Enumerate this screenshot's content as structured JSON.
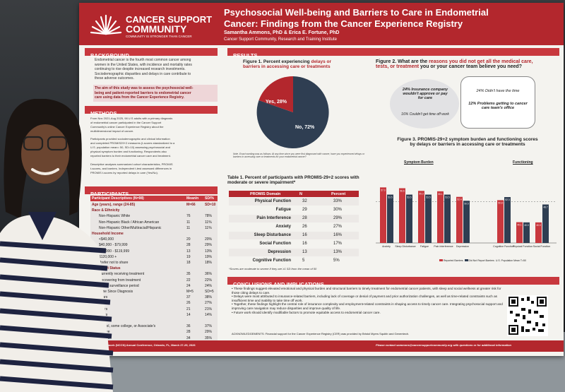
{
  "poster": {
    "org_name_1": "CANCER SUPPORT",
    "org_name_2": "COMMUNITY",
    "org_tagline": "COMMUNITY IS STRONGER THAN CANCER",
    "title_1": "Psychosocial Well-being and Barriers to Care in Endometrial",
    "title_2": "Cancer: Findings from the Cancer Experience Registry",
    "authors": "Samantha Ammons, PhD & Erica E. Fortune, PhD",
    "affiliation": "Cancer Support Community, Research and Training Institute"
  },
  "background": {
    "heading": "BACKGROUND",
    "text": [
      "Endometrial cancer is the fourth most common cancer among",
      "women in the United States, with incidence and mortality rates",
      "continuing to rise despite increased research investments.",
      "Sociodemographic disparities and delays in care contribute to",
      "these adverse outcomes."
    ],
    "aim": [
      "The aim of this study was to assess the psychosocial well-",
      "being and patient-reported barriers to endometrial cancer",
      "care using data from the Cancer Experience Registry."
    ]
  },
  "methods": {
    "heading": "METHODS",
    "bullets": [
      [
        "From Nov 2021-Aug 2025, 98 U.S adults with a primary diagnosis",
        "of endometrial cancer participated in the Cancer Support",
        "Community's online Cancer Experience Registry about the",
        "multidimensional impact of cancer."
      ],
      [
        "Participants provided sociodemographic and clinical information",
        "and completed PROMIS29+2 measures (t-scores standardized to a",
        "U.S. population mean= 50, SD=10) assessing psychosocial and",
        "physical symptom burden and functioning. Respondents also",
        "reported barriers to their endometrial cancer care and treatment."
      ],
      [
        "Descriptive analyses summarized cohort characteristics, PROMIS",
        "t-scores, and barriers. Independent t-test assessed differences in",
        "PROMIS t-scores by reported delays in care (Yes/No)."
      ]
    ]
  },
  "participants": {
    "heading": "PARTICIPANTS",
    "header": [
      "Participant Descriptives (N=98)",
      "Mean/n",
      "SD/%"
    ],
    "rows": [
      [
        "Age (years), range (24-85)",
        "M=66",
        "SD=10"
      ],
      [
        "Race & Ethnicity",
        "",
        ""
      ],
      [
        "Non-Hispanic White",
        "76",
        "78%"
      ],
      [
        "Non-Hispanic Black / African American",
        "11",
        "11%"
      ],
      [
        "Non-Hispanic Other/Multiracial/Hispanic",
        "11",
        "11%"
      ],
      [
        "Household Income",
        "",
        ""
      ],
      [
        "<$40,000",
        "20",
        "20%"
      ],
      [
        "$40,000 - $79,999",
        "28",
        "29%"
      ],
      [
        "$80,000 - $119,999",
        "13",
        "13%"
      ],
      [
        "$120,000 +",
        "19",
        "19%"
      ],
      [
        "Prefer not to share",
        "18",
        "18%"
      ],
      [
        "Treatment Status",
        "",
        ""
      ],
      [
        "Currently receiving treatment",
        "35",
        "36%"
      ],
      [
        "Recovering from treatment",
        "22",
        "22%"
      ],
      [
        "Active surveillance period",
        "24",
        "24%"
      ],
      [
        "Time Since Diagnosis",
        "M=5",
        "SD=5"
      ],
      [
        "years",
        "37",
        "38%"
      ],
      [
        "years",
        "26",
        "27%"
      ],
      [
        "years",
        "21",
        "21%"
      ],
      [
        "years",
        "14",
        "14%"
      ],
      [
        "",
        "",
        ""
      ],
      [
        "school, some college, or Associate's",
        "36",
        "37%"
      ],
      [
        "degree",
        "28",
        "29%"
      ],
      [
        "degree",
        "34",
        "35%"
      ]
    ]
  },
  "results": {
    "heading": "RESULTS",
    "fig1_title_a": "Figure 1.  Percent experiencing",
    "fig1_title_b": "delays or",
    "fig1_title_c": "barriers in accessing care or treatments",
    "pie_yes": "Yes, 28%",
    "pie_no": "No, 72%",
    "fig1_note": "Note. Exact wording was as follows: At any time since you were first diagnosed with cancer, have you experienced delays or barriers in accessing care or treatments for your endometrial cancer?",
    "fig2_title_1": "Figure 2. What are the",
    "fig2_title_2": "reasons you did not get all the medical care,",
    "fig2_title_3": "tests, or treatment",
    "fig2_title_4": "you or your cancer team believe you need?",
    "bubble1_a": "24% Insurance company wouldn't approve or pay for care",
    "bubble1_b": "16% Couldn't get time off work",
    "bubble2_a": "24% Didn't have the time",
    "bubble2_b": "12% Problems getting to cancer care team's office",
    "table1_title": "Table 1. Percent of participants with PROMIS-29+2 scores with moderate or severe impairment*",
    "table1_header": [
      "PROMIS Domain",
      "N",
      "Percent"
    ],
    "table1_rows": [
      [
        "Physical Function",
        "32",
        "33%"
      ],
      [
        "Fatigue",
        "29",
        "30%"
      ],
      [
        "Pain Interference",
        "28",
        "29%"
      ],
      [
        "Anxiety",
        "26",
        "27%"
      ],
      [
        "Sleep Disturbance",
        "16",
        "16%"
      ],
      [
        "Social Function",
        "16",
        "17%"
      ],
      [
        "Depression",
        "13",
        "13%"
      ],
      [
        "Cognitive Function",
        "5",
        "5%"
      ]
    ],
    "table1_note": "*Scores are moderate to severe if they are ≥1 SD from the mean of 50",
    "fig3_title_1": "Figure 3. PROMIS-29+2 symptom burden and functioning scores",
    "fig3_title_2": "by delays or barriers in accessing care or treatments",
    "fig3_left_label": "Symptom Burden",
    "fig3_right_label": "Functioning",
    "legend_yes": "Reported Barriers",
    "legend_no": "Did Not Report Barriers",
    "legend_mean": "U.S. Population Mean T=50"
  },
  "chart_data": {
    "type": "bar",
    "categories": [
      "Anxiety",
      "Sleep Disturbance",
      "Fatigue",
      "Pain Interference",
      "Depression",
      "Cognitive Function",
      "Physical Function",
      "Social Function"
    ],
    "series": [
      {
        "name": "Reported Barriers",
        "values": [
          57.0,
          56.6,
          55.3,
          55.1,
          52.4,
          50.8,
          40.1,
          40.0
        ],
        "color": "#c8383e"
      },
      {
        "name": "Did Not Report Barriers",
        "values": [
          53.5,
          53.5,
          53.5,
          53.5,
          50.5,
          52.3,
          40.0,
          48.7
        ],
        "color": "#2f3e52"
      }
    ],
    "ylim": [
      30,
      65
    ],
    "reference_line": 50
  },
  "conclusions": {
    "heading": "CONCLUSIONS AND IMPLICATIONS",
    "bullets": [
      "These findings suggest elevated emotional and physical burden and structural barriers to timely treatment for endometrial cancer patients, with sleep and social wellness at greater risk for those citing delays to care.",
      "Delays were most attributed to insurance-related barriers, including lack of coverage or denial of payment and prior authorization challenges, as well as time-related constraints such as insufficient time and inability to take time off work.",
      "Together, these findings highlight the central role of insurance complexity and employment-related constraints in shaping access to timely cancer care. Integrating psychosocial support and improving care navigation may reduce disparities and improve quality of life.",
      "Future work should identify modifiable factors to promote equitable access to endometrial cancer care."
    ],
    "ack": "ACKNOWLEDGEMENTS: Financial support for the Cancer Experience Registry (CER) was provided by Bristol Myers Squibb and Genentech."
  },
  "footer": {
    "left": "Cancer Network (NCCN) Annual Conference, Orlando, FL, March 27-29, 2026",
    "right": "Please contact sammons@cancersupportcommunity.org with questions or for additional information"
  }
}
